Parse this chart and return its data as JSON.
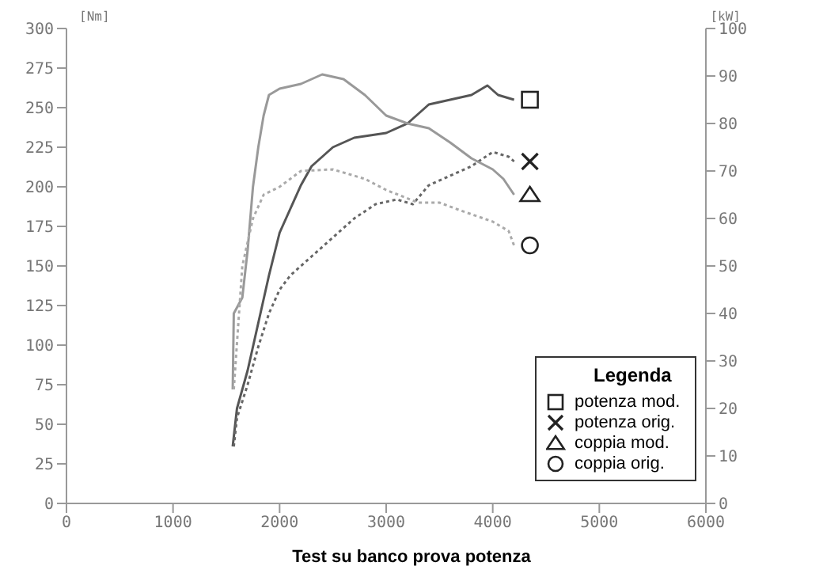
{
  "chart_data": {
    "type": "line",
    "title": "Test su banco prova potenza",
    "ylabel": "[Nm]",
    "y2label": "[kW]",
    "legend_title": "Legenda",
    "legend": "bottom right",
    "grid": false,
    "xlim": [
      0,
      6000
    ],
    "xticks": [
      0,
      1000,
      2000,
      3000,
      4000,
      5000,
      6000
    ],
    "ylim": [
      0,
      300
    ],
    "yticks": [
      0,
      25,
      50,
      75,
      100,
      125,
      150,
      175,
      200,
      225,
      250,
      275,
      300
    ],
    "y2lim": [
      0,
      100
    ],
    "y2ticks": [
      0,
      10,
      20,
      30,
      40,
      50,
      60,
      70,
      80,
      90,
      100
    ],
    "series": [
      {
        "name": "potenza mod.",
        "axis": "y2",
        "color": "#555555",
        "line_style": "solid",
        "x": [
          1560,
          1600,
          1700,
          1800,
          1900,
          2000,
          2100,
          2200,
          2300,
          2500,
          2700,
          3000,
          3200,
          3400,
          3600,
          3800,
          3950,
          4050,
          4200
        ],
        "values": [
          12,
          20,
          28,
          38,
          48,
          57,
          62,
          67,
          71,
          75,
          77,
          78,
          80,
          84,
          85,
          86,
          88,
          86,
          85
        ]
      },
      {
        "name": "potenza orig.",
        "axis": "y2",
        "color": "#666666",
        "line_style": "dotted",
        "x": [
          1570,
          1600,
          1700,
          1800,
          1900,
          2000,
          2100,
          2300,
          2500,
          2700,
          2900,
          3100,
          3250,
          3400,
          3600,
          3800,
          4000,
          4150,
          4200
        ],
        "values": [
          12,
          18,
          25,
          33,
          40,
          45,
          48,
          52,
          56,
          60,
          63,
          64,
          63,
          67,
          69,
          71,
          74,
          73,
          72
        ]
      },
      {
        "name": "coppia mod.",
        "axis": "y",
        "color": "#999999",
        "line_style": "solid",
        "x": [
          1560,
          1570,
          1650,
          1700,
          1750,
          1800,
          1850,
          1900,
          2000,
          2200,
          2400,
          2600,
          2800,
          3000,
          3200,
          3400,
          3600,
          3800,
          4000,
          4100,
          4200
        ],
        "values": [
          72,
          120,
          130,
          160,
          200,
          225,
          245,
          258,
          262,
          265,
          271,
          268,
          258,
          245,
          240,
          237,
          228,
          218,
          211,
          205,
          195
        ]
      },
      {
        "name": "coppia orig.",
        "axis": "y",
        "color": "#aaaaaa",
        "line_style": "dotted",
        "x": [
          1570,
          1650,
          1750,
          1850,
          2000,
          2200,
          2500,
          2800,
          3000,
          3300,
          3500,
          3700,
          4000,
          4150,
          4200
        ],
        "values": [
          72,
          150,
          180,
          195,
          200,
          210,
          211,
          205,
          198,
          190,
          190,
          185,
          178,
          172,
          163
        ]
      }
    ]
  }
}
